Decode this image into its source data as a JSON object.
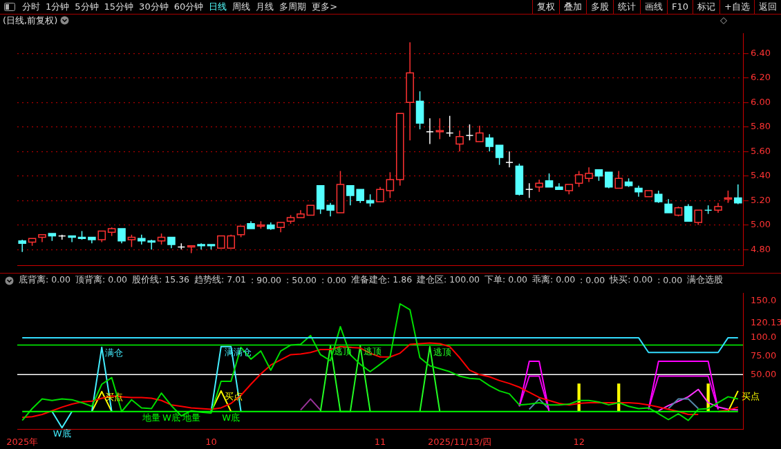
{
  "chart_data": [
    {
      "type": "candlestick",
      "title": "(日线,前复权)",
      "annotations": [
        "分时",
        "1分钟",
        "5分钟",
        "15分钟",
        "30分钟",
        "60分钟",
        "日线",
        "周线",
        "月线",
        "多周期",
        "更多>",
        "复权",
        "叠加",
        "多股",
        "统计",
        "画线",
        "F10",
        "标记",
        "+自选",
        "返回"
      ],
      "categories": [
        null,
        null,
        null,
        null,
        null,
        null,
        null,
        null,
        null,
        null,
        null,
        null,
        null,
        null,
        null,
        null,
        null,
        null,
        null,
        null,
        null,
        null,
        null,
        null,
        null,
        null,
        null,
        null,
        null,
        null,
        null,
        null,
        null,
        null,
        null,
        null,
        null,
        null,
        null,
        null,
        null,
        null,
        null,
        null,
        null,
        null,
        null,
        null,
        null,
        null,
        null,
        null,
        null,
        null,
        null,
        null,
        null,
        null,
        null,
        null,
        null,
        null,
        null,
        null,
        null,
        null,
        null,
        null,
        null,
        null,
        null,
        null,
        null
      ],
      "ohlc": [
        [
          4.87,
          4.88,
          4.78,
          4.85
        ],
        [
          4.86,
          4.89,
          4.83,
          4.89
        ],
        [
          4.9,
          4.92,
          4.86,
          4.92
        ],
        [
          4.93,
          4.93,
          4.87,
          4.91
        ],
        [
          4.91,
          4.92,
          4.88,
          4.91
        ],
        [
          4.91,
          4.91,
          4.86,
          4.9
        ],
        [
          4.9,
          4.95,
          4.88,
          4.89
        ],
        [
          4.9,
          4.9,
          4.85,
          4.88
        ],
        [
          4.88,
          4.95,
          4.86,
          4.95
        ],
        [
          4.94,
          4.98,
          4.91,
          4.97
        ],
        [
          4.97,
          4.97,
          4.85,
          4.87
        ],
        [
          4.88,
          4.92,
          4.82,
          4.9
        ],
        [
          4.89,
          4.92,
          4.84,
          4.87
        ],
        [
          4.87,
          4.88,
          4.8,
          4.86
        ],
        [
          4.87,
          4.93,
          4.84,
          4.9
        ],
        [
          4.9,
          4.9,
          4.81,
          4.84
        ],
        [
          4.82,
          4.85,
          4.8,
          4.82
        ],
        [
          4.82,
          4.83,
          4.77,
          4.83
        ],
        [
          4.84,
          4.85,
          4.8,
          4.83
        ],
        [
          4.84,
          4.84,
          4.8,
          4.83
        ],
        [
          4.81,
          4.91,
          4.81,
          4.91
        ],
        [
          4.81,
          4.92,
          4.81,
          4.91
        ],
        [
          4.92,
          4.99,
          4.9,
          4.99
        ],
        [
          5.01,
          5.03,
          4.97,
          4.97
        ],
        [
          4.99,
          5.03,
          4.97,
          5.0
        ],
        [
          5.0,
          5.02,
          4.96,
          4.97
        ],
        [
          4.98,
          5.02,
          4.94,
          5.02
        ],
        [
          5.03,
          5.08,
          5.01,
          5.06
        ],
        [
          5.06,
          5.12,
          5.06,
          5.09
        ],
        [
          5.08,
          5.16,
          5.08,
          5.16
        ],
        [
          5.32,
          5.32,
          5.09,
          5.13
        ],
        [
          5.16,
          5.18,
          5.07,
          5.12
        ],
        [
          5.1,
          5.44,
          5.1,
          5.33
        ],
        [
          5.32,
          5.32,
          5.16,
          5.24
        ],
        [
          5.29,
          5.29,
          5.18,
          5.2
        ],
        [
          5.2,
          5.25,
          5.15,
          5.18
        ],
        [
          5.19,
          5.31,
          5.19,
          5.29
        ],
        [
          5.28,
          5.43,
          5.22,
          5.37
        ],
        [
          5.37,
          5.91,
          5.32,
          5.91
        ],
        [
          6.0,
          6.49,
          5.69,
          6.24
        ],
        [
          6.01,
          6.09,
          5.78,
          5.83
        ],
        [
          5.76,
          5.87,
          5.66,
          5.76
        ],
        [
          5.76,
          5.87,
          5.7,
          5.77
        ],
        [
          5.75,
          5.89,
          5.72,
          5.75
        ],
        [
          5.66,
          5.77,
          5.6,
          5.72
        ],
        [
          5.73,
          5.82,
          5.69,
          5.73
        ],
        [
          5.68,
          5.81,
          5.68,
          5.75
        ],
        [
          5.71,
          5.74,
          5.6,
          5.64
        ],
        [
          5.65,
          5.65,
          5.49,
          5.55
        ],
        [
          5.51,
          5.6,
          5.47,
          5.51
        ],
        [
          5.48,
          5.5,
          5.24,
          5.25
        ],
        [
          5.29,
          5.34,
          5.22,
          5.29
        ],
        [
          5.31,
          5.37,
          5.27,
          5.34
        ],
        [
          5.36,
          5.42,
          5.31,
          5.31
        ],
        [
          5.31,
          5.34,
          5.29,
          5.29
        ],
        [
          5.28,
          5.33,
          5.25,
          5.33
        ],
        [
          5.34,
          5.44,
          5.31,
          5.41
        ],
        [
          5.38,
          5.47,
          5.35,
          5.42
        ],
        [
          5.45,
          5.45,
          5.36,
          5.4
        ],
        [
          5.43,
          5.43,
          5.3,
          5.31
        ],
        [
          5.3,
          5.44,
          5.3,
          5.38
        ],
        [
          5.35,
          5.38,
          5.31,
          5.32
        ],
        [
          5.3,
          5.32,
          5.23,
          5.27
        ],
        [
          5.23,
          5.28,
          5.23,
          5.28
        ],
        [
          5.25,
          5.28,
          5.18,
          5.19
        ],
        [
          5.17,
          5.21,
          5.1,
          5.1
        ],
        [
          5.08,
          5.15,
          5.07,
          5.14
        ],
        [
          5.15,
          5.17,
          5.03,
          5.03
        ],
        [
          5.02,
          5.12,
          5.0,
          5.12
        ],
        [
          5.12,
          5.16,
          5.09,
          5.12
        ],
        [
          5.12,
          5.18,
          5.1,
          5.15
        ],
        [
          5.21,
          5.28,
          5.18,
          5.22
        ],
        [
          5.22,
          5.33,
          5.17,
          5.18
        ]
      ],
      "colors": [
        "#54ffff",
        "#ff3232",
        "#ff3232",
        "#54ffff",
        "#ffffff",
        "#54ffff",
        "#54ffff",
        "#54ffff",
        "#ff3232",
        "#ff3232",
        "#54ffff",
        "#ff3232",
        "#54ffff",
        "#54ffff",
        "#ff3232",
        "#54ffff",
        "#ffffff",
        "#ff3232",
        "#54ffff",
        "#54ffff",
        "#ff3232",
        "#ff3232",
        "#ff3232",
        "#54ffff",
        "#ff3232",
        "#54ffff",
        "#ff3232",
        "#ff3232",
        "#ff3232",
        "#ff3232",
        "#54ffff",
        "#54ffff",
        "#ff3232",
        "#54ffff",
        "#54ffff",
        "#54ffff",
        "#ff3232",
        "#ff3232",
        "#ff3232",
        "#ff3232",
        "#54ffff",
        "#ffffff",
        "#ff3232",
        "#ffffff",
        "#ff3232",
        "#ffffff",
        "#ff3232",
        "#54ffff",
        "#54ffff",
        "#ffffff",
        "#54ffff",
        "#ffffff",
        "#ff3232",
        "#54ffff",
        "#54ffff",
        "#ff3232",
        "#ff3232",
        "#ff3232",
        "#54ffff",
        "#54ffff",
        "#ff3232",
        "#54ffff",
        "#54ffff",
        "#ff3232",
        "#54ffff",
        "#54ffff",
        "#ff3232",
        "#54ffff",
        "#ff3232",
        "#54ffff",
        "#ff3232",
        "#ff3232",
        "#54ffff"
      ],
      "ylim": [
        4.67,
        6.56
      ],
      "yticks": [
        {
          "value": 4.8,
          "label": "4.80"
        },
        {
          "value": 5,
          "label": "5.00"
        },
        {
          "value": 5.2,
          "label": "5.20"
        },
        {
          "value": 5.4,
          "label": "5.40"
        },
        {
          "value": 5.6,
          "label": "5.60"
        },
        {
          "value": 5.8,
          "label": "5.80"
        },
        {
          "value": 6,
          "label": "6.00"
        },
        {
          "value": 6.2,
          "label": "6.20"
        },
        {
          "value": 6.4,
          "label": "6.40"
        }
      ],
      "grid": "y",
      "tick_labels": "y"
    },
    {
      "type": "line",
      "annotations": [
        "底背离: 0.00",
        "顶背离: 0.00",
        "股价线: 15.36",
        "趋势线: 7.01",
        ": 90.00",
        ": 50.00",
        ": 0.00",
        "准备建仓: 1.86",
        "建仓区: 100.00",
        "下单: 0.00",
        "乖离: 0.00",
        ": 0.00",
        "快买: 0.00",
        ": 0.00",
        "满仓选股"
      ],
      "categories": [
        "2025年",
        null,
        null,
        null,
        null,
        null,
        null,
        null,
        null,
        null,
        null,
        null,
        null,
        null,
        null,
        null,
        null,
        null,
        null,
        "10",
        null,
        null,
        null,
        null,
        null,
        null,
        null,
        null,
        null,
        null,
        null,
        null,
        null,
        null,
        null,
        null,
        "11",
        null,
        null,
        null,
        null,
        null,
        null,
        null,
        "2025/11/13/四",
        null,
        null,
        null,
        null,
        null,
        null,
        null,
        null,
        null,
        null,
        null,
        "12",
        null,
        null,
        null,
        null,
        null,
        null,
        null,
        null,
        null,
        null,
        null,
        null,
        null,
        null,
        null,
        null
      ],
      "ylim": [
        -24,
        160
      ],
      "yticks": [
        {
          "value": 50,
          "label": "50.00"
        },
        {
          "value": 75,
          "label": "75.00"
        },
        {
          "value": 100,
          "label": "100.0"
        },
        {
          "value": 120.13,
          "label": "120.13"
        },
        {
          "value": 150,
          "label": "150.0"
        }
      ],
      "ref_lines": [
        {
          "axis": "y",
          "value": 90,
          "color": "#00ff00"
        },
        {
          "axis": "y",
          "value": 50,
          "color": "#ffffff"
        }
      ],
      "series": [
        {
          "type": "line",
          "color": "#00ff00",
          "values": [
            0,
            0,
            0,
            0,
            0,
            0,
            0,
            0,
            0,
            0,
            0,
            0,
            0,
            0,
            0,
            0,
            0,
            0,
            0,
            0,
            0,
            0,
            0,
            0,
            0,
            0,
            0,
            0,
            0,
            0,
            0,
            0,
            0,
            0,
            0,
            0,
            0,
            0,
            0,
            0,
            0,
            0,
            0,
            0,
            0,
            0,
            0,
            0,
            0,
            0,
            0,
            0,
            0,
            0,
            0,
            0,
            0,
            0,
            0,
            0,
            0,
            0,
            0,
            0,
            0,
            0,
            0,
            0,
            0,
            0,
            0,
            0,
            0
          ],
          "value_labels": [
            null,
            null,
            null,
            null,
            null,
            null,
            null,
            null,
            null,
            null,
            null,
            null,
            null,
            "地量",
            null,
            "W底",
            null,
            "地量",
            null,
            null,
            null,
            "W底",
            null,
            null,
            null,
            null,
            null,
            null,
            null,
            null,
            null,
            null,
            null,
            null,
            null,
            null,
            null,
            null,
            null,
            null,
            null,
            null,
            null,
            null,
            null,
            null,
            null,
            null,
            null,
            null,
            null,
            null,
            null,
            null,
            null,
            null,
            null,
            null,
            null,
            null,
            null,
            null,
            null,
            null,
            null,
            null,
            null,
            null,
            null,
            null,
            null,
            null,
            null
          ]
        },
        {
          "type": "line",
          "color": "#33ddff",
          "values": [
            100,
            100,
            100,
            100,
            100,
            100,
            100,
            100,
            100,
            100,
            100,
            100,
            100,
            100,
            100,
            100,
            100,
            100,
            100,
            100,
            100,
            100,
            100,
            100,
            100,
            100,
            100,
            100,
            100,
            100,
            100,
            100,
            100,
            100,
            100,
            100,
            100,
            100,
            100,
            100,
            100,
            100,
            100,
            100,
            100,
            100,
            100,
            100,
            100,
            100,
            100,
            100,
            100,
            100,
            100,
            100,
            100,
            100,
            100,
            100,
            100,
            100,
            100,
            80,
            80,
            80,
            80,
            80,
            80,
            80,
            80,
            100,
            100
          ]
        },
        {
          "type": "line",
          "color": "#00dd00",
          "values": [
            -12,
            4,
            17,
            15,
            17,
            16,
            12,
            7,
            37,
            46,
            0,
            16,
            5,
            4,
            25,
            8,
            -6,
            1,
            -1,
            -2,
            41,
            41,
            87,
            71,
            82,
            56,
            82,
            90,
            91,
            103,
            77,
            69,
            115,
            77,
            64,
            54,
            64,
            74,
            146,
            138,
            73,
            62,
            58,
            54,
            48,
            45,
            44,
            35,
            28,
            24,
            9,
            10,
            12,
            9,
            9,
            10,
            15,
            15,
            13,
            9,
            12,
            7,
            4,
            5,
            -3,
            -11,
            -3,
            -12,
            3,
            4,
            12,
            20,
            17
          ]
        },
        {
          "type": "line",
          "color": "#ff0000",
          "values": [
            -8,
            -7,
            -4,
            1,
            6,
            10,
            13,
            14,
            18,
            21,
            20,
            19,
            19,
            18,
            15,
            9,
            7,
            5,
            4,
            3,
            5,
            11,
            22,
            37,
            51,
            63,
            70,
            77,
            78,
            80,
            84,
            84,
            88,
            87,
            86,
            79,
            74,
            74,
            79,
            91,
            92,
            93,
            92,
            88,
            73,
            56,
            50,
            47,
            42,
            38,
            33,
            26,
            19,
            15,
            11,
            9,
            11,
            12,
            12,
            12,
            12,
            12,
            11,
            9,
            6,
            3,
            0,
            -4,
            -4,
            null,
            0,
            2,
            6
          ]
        },
        {
          "type": "line",
          "color": "#44eeff",
          "values": [
            null,
            null,
            null,
            0,
            -22,
            0,
            null,
            0,
            87,
            0,
            null,
            null,
            null,
            null,
            null,
            null,
            null,
            null,
            null,
            0,
            88,
            88,
            0,
            null,
            null,
            null,
            null,
            null,
            null,
            null,
            null,
            null,
            null,
            null,
            null,
            null,
            null,
            null,
            null,
            null,
            null,
            null,
            null,
            null,
            null,
            null,
            null,
            null,
            null,
            null,
            null,
            null,
            null,
            null,
            null,
            null,
            null,
            null,
            null,
            null,
            null,
            null,
            null,
            null,
            null,
            null,
            null,
            null,
            null,
            null,
            null,
            null,
            null
          ],
          "value_labels": [
            null,
            null,
            null,
            null,
            "W底",
            null,
            null,
            null,
            "满仓",
            null,
            null,
            null,
            null,
            null,
            null,
            null,
            null,
            null,
            null,
            null,
            "满满仓",
            null,
            null,
            null,
            null,
            null,
            null,
            null,
            null,
            null,
            null,
            null,
            null,
            null,
            null,
            null,
            null,
            null,
            null,
            null,
            null,
            null,
            null,
            null,
            null,
            null,
            null,
            null,
            null,
            null,
            null,
            null,
            null,
            null,
            null,
            null,
            null,
            null,
            null,
            null,
            null,
            null,
            null,
            null,
            null,
            null,
            null,
            null,
            null,
            null,
            null,
            null,
            null
          ]
        },
        {
          "type": "line",
          "color": "#ffff00",
          "values": [
            null,
            null,
            null,
            null,
            null,
            null,
            null,
            0,
            27,
            0,
            null,
            null,
            null,
            null,
            null,
            null,
            null,
            null,
            null,
            0,
            28,
            0,
            null,
            null,
            null,
            null,
            null,
            null,
            null,
            null,
            null,
            null,
            null,
            null,
            null,
            null,
            null,
            null,
            null,
            null,
            null,
            null,
            null,
            null,
            null,
            null,
            null,
            null,
            null,
            null,
            null,
            null,
            null,
            null,
            null,
            null,
            null,
            null,
            null,
            null,
            null,
            null,
            null,
            null,
            null,
            null,
            null,
            null,
            null,
            null,
            null,
            0,
            28
          ],
          "value_labels": [
            null,
            null,
            null,
            null,
            null,
            null,
            null,
            null,
            "买点",
            null,
            null,
            null,
            null,
            null,
            null,
            null,
            null,
            null,
            null,
            null,
            "买点",
            null,
            null,
            null,
            null,
            null,
            null,
            null,
            null,
            null,
            null,
            null,
            null,
            null,
            null,
            null,
            null,
            null,
            null,
            null,
            null,
            null,
            null,
            null,
            null,
            null,
            null,
            null,
            null,
            null,
            null,
            null,
            null,
            null,
            null,
            null,
            null,
            null,
            null,
            null,
            null,
            null,
            null,
            null,
            null,
            null,
            null,
            null,
            null,
            null,
            null,
            null,
            "买点"
          ]
        },
        {
          "type": "line",
          "color": "#22ff22",
          "values": [
            null,
            null,
            null,
            null,
            null,
            null,
            null,
            null,
            null,
            null,
            null,
            null,
            null,
            null,
            null,
            null,
            null,
            null,
            null,
            null,
            null,
            null,
            null,
            null,
            null,
            null,
            null,
            null,
            null,
            null,
            0,
            89,
            0,
            0,
            89,
            0,
            null,
            null,
            null,
            null,
            0,
            88,
            0,
            null,
            null,
            null,
            null,
            null,
            null,
            null,
            null,
            null,
            null,
            null,
            null,
            null,
            null,
            null,
            null,
            null,
            null,
            null,
            null,
            null,
            null,
            null,
            null,
            null,
            null,
            null,
            null,
            null,
            null
          ],
          "value_labels": [
            null,
            null,
            null,
            null,
            null,
            null,
            null,
            null,
            null,
            null,
            null,
            null,
            null,
            null,
            null,
            null,
            null,
            null,
            null,
            null,
            null,
            null,
            null,
            null,
            null,
            null,
            null,
            null,
            null,
            null,
            null,
            "逃顶",
            null,
            null,
            "逃顶",
            null,
            null,
            null,
            null,
            null,
            null,
            "逃顶",
            null,
            null,
            null,
            null,
            null,
            null,
            null,
            null,
            null,
            null,
            null,
            null,
            null,
            null,
            null,
            null,
            null,
            null,
            null,
            null,
            null,
            null,
            null,
            null,
            null,
            null,
            null,
            null,
            null,
            null,
            null
          ]
        },
        {
          "type": "line",
          "color": "#993399",
          "values": [
            null,
            null,
            null,
            null,
            null,
            null,
            null,
            null,
            null,
            null,
            null,
            null,
            null,
            null,
            null,
            null,
            null,
            null,
            null,
            null,
            null,
            null,
            null,
            null,
            null,
            null,
            null,
            null,
            2,
            17,
            2,
            null,
            null,
            null,
            null,
            null,
            null,
            null,
            null,
            null,
            null,
            null,
            null,
            null,
            null,
            null,
            null,
            null,
            null,
            null,
            null,
            null,
            null,
            null,
            null,
            null,
            null,
            null,
            null,
            null,
            null,
            null,
            null,
            null,
            null,
            null,
            null,
            null,
            null,
            null,
            null,
            null,
            null
          ]
        },
        {
          "type": "line",
          "color": "#ff00ff",
          "values": [
            null,
            null,
            null,
            null,
            null,
            null,
            null,
            null,
            null,
            null,
            null,
            null,
            null,
            null,
            null,
            null,
            null,
            null,
            null,
            null,
            null,
            null,
            null,
            null,
            null,
            null,
            null,
            null,
            null,
            null,
            null,
            null,
            null,
            null,
            null,
            null,
            null,
            null,
            null,
            null,
            null,
            null,
            null,
            null,
            null,
            null,
            null,
            null,
            null,
            null,
            7,
            68,
            68,
            0,
            null,
            null,
            null,
            null,
            null,
            null,
            null,
            null,
            null,
            3,
            68,
            68,
            68,
            68,
            68,
            68,
            3,
            null,
            null
          ]
        },
        {
          "type": "line",
          "color": "#ee00ee",
          "values": [
            null,
            null,
            null,
            null,
            null,
            null,
            null,
            null,
            null,
            null,
            null,
            null,
            null,
            null,
            null,
            null,
            null,
            null,
            null,
            null,
            null,
            null,
            null,
            null,
            null,
            null,
            null,
            null,
            null,
            null,
            null,
            null,
            null,
            null,
            null,
            null,
            null,
            null,
            null,
            null,
            null,
            null,
            null,
            null,
            null,
            null,
            null,
            null,
            null,
            null,
            7,
            48,
            48,
            0,
            null,
            null,
            null,
            null,
            null,
            null,
            null,
            null,
            null,
            3,
            48,
            48,
            48,
            48,
            48,
            48,
            3,
            null,
            null
          ]
        },
        {
          "type": "line",
          "color": "#5588aa",
          "values": [
            null,
            null,
            null,
            null,
            null,
            null,
            null,
            null,
            null,
            null,
            null,
            null,
            null,
            null,
            null,
            null,
            null,
            null,
            null,
            null,
            null,
            null,
            null,
            null,
            null,
            null,
            null,
            null,
            null,
            null,
            null,
            null,
            null,
            null,
            null,
            null,
            null,
            null,
            null,
            null,
            null,
            null,
            null,
            null,
            null,
            null,
            null,
            null,
            null,
            null,
            null,
            3,
            17,
            3,
            null,
            null,
            null,
            null,
            null,
            null,
            null,
            null,
            null,
            null,
            null,
            4,
            17,
            17,
            4,
            null,
            null,
            null,
            null
          ]
        },
        {
          "type": "line",
          "color": "#ff33ff",
          "values": [
            null,
            null,
            null,
            null,
            null,
            null,
            null,
            null,
            null,
            null,
            null,
            null,
            null,
            null,
            null,
            null,
            null,
            null,
            null,
            null,
            null,
            null,
            null,
            null,
            null,
            null,
            null,
            null,
            null,
            null,
            null,
            null,
            null,
            null,
            null,
            null,
            null,
            null,
            null,
            null,
            null,
            null,
            null,
            null,
            null,
            null,
            null,
            null,
            null,
            null,
            null,
            null,
            null,
            null,
            null,
            null,
            null,
            null,
            null,
            null,
            null,
            null,
            null,
            null,
            1,
            8,
            14,
            20,
            30,
            12,
            6,
            3,
            2
          ]
        },
        {
          "type": "bar",
          "color": "#ffff00",
          "values": [
            null,
            null,
            null,
            null,
            null,
            null,
            null,
            null,
            null,
            null,
            null,
            null,
            null,
            null,
            null,
            null,
            null,
            null,
            null,
            null,
            null,
            null,
            null,
            null,
            null,
            null,
            null,
            null,
            null,
            null,
            null,
            null,
            null,
            null,
            null,
            null,
            null,
            null,
            null,
            null,
            null,
            null,
            null,
            null,
            null,
            null,
            null,
            null,
            null,
            null,
            null,
            null,
            null,
            null,
            null,
            null,
            38,
            null,
            null,
            null,
            38,
            null,
            null,
            null,
            null,
            null,
            null,
            null,
            null,
            38,
            null,
            null,
            null
          ]
        }
      ]
    }
  ]
}
